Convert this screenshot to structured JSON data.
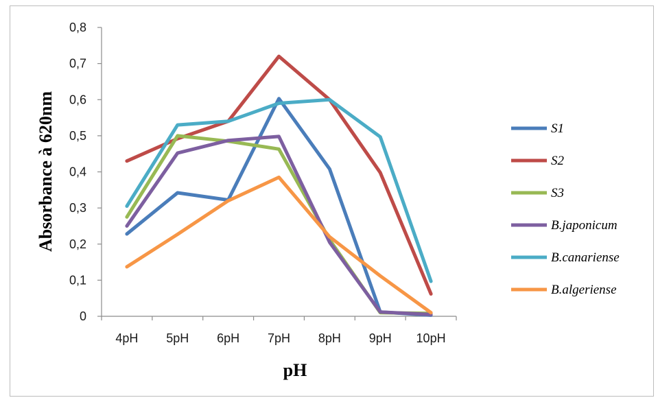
{
  "chart_data": {
    "type": "line",
    "title": "",
    "xlabel": "pH",
    "ylabel": "Absorbance à 620nm",
    "categories": [
      "4pH",
      "5pH",
      "6pH",
      "7pH",
      "8pH",
      "9pH",
      "10pH"
    ],
    "ylim": [
      0,
      0.8
    ],
    "yticks": [
      "0",
      "0,1",
      "0,2",
      "0,3",
      "0,4",
      "0,5",
      "0,6",
      "0,7",
      "0,8"
    ],
    "grid": false,
    "legend_position": "right",
    "series": [
      {
        "name": "S1",
        "color": "#4A7DBA",
        "values": [
          0.228,
          0.342,
          0.322,
          0.603,
          0.408,
          0.012,
          0.003
        ]
      },
      {
        "name": "S2",
        "color": "#BE4B48",
        "values": [
          0.43,
          0.492,
          0.54,
          0.72,
          0.6,
          0.398,
          0.062
        ]
      },
      {
        "name": "S3",
        "color": "#98B954",
        "values": [
          0.275,
          0.5,
          0.485,
          0.463,
          0.212,
          0.01,
          0.008
        ]
      },
      {
        "name": "B.japonicum",
        "color": "#7D5FA0",
        "values": [
          0.25,
          0.452,
          0.487,
          0.498,
          0.205,
          0.012,
          0.005
        ]
      },
      {
        "name": "B.canariense",
        "color": "#4BACC6",
        "values": [
          0.305,
          0.53,
          0.54,
          0.59,
          0.6,
          0.497,
          0.097
        ]
      },
      {
        "name": "B.algeriense",
        "color": "#F79646",
        "values": [
          0.137,
          0.227,
          0.32,
          0.385,
          0.22,
          0.112,
          0.01
        ]
      }
    ]
  }
}
